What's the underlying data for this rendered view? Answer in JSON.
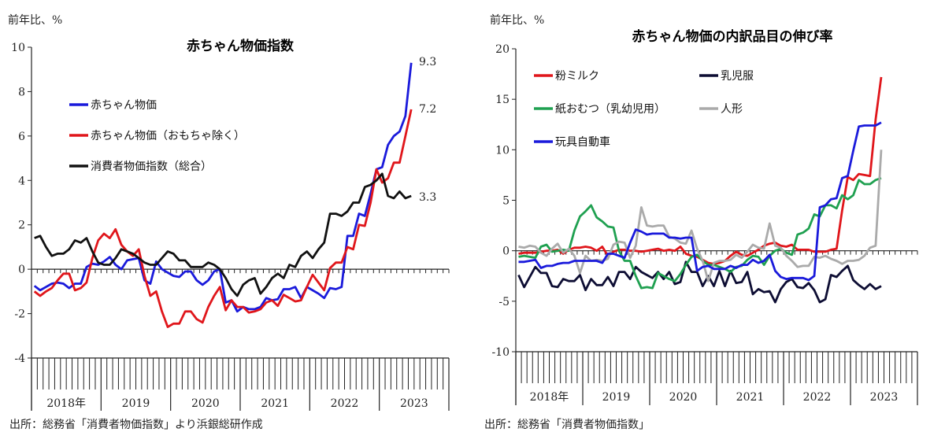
{
  "chart_data": [
    {
      "type": "line",
      "title": "赤ちゃん物価指数",
      "ylabel": "前年比、%",
      "ylim": [
        -4,
        10
      ],
      "yticks": [
        10,
        8,
        6,
        4,
        2,
        0,
        -2,
        -4
      ],
      "x_start": "2018-01",
      "frequency": "monthly",
      "year_labels": [
        "2018年",
        "2019",
        "2020",
        "2021",
        "2022",
        "2023"
      ],
      "legend": "upper-left",
      "source": "出所：総務省「消費者物価指数」より浜銀総研作成",
      "end_labels": [
        "9.3",
        "7.2",
        "3.3"
      ],
      "series": [
        {
          "name": "赤ちゃん物価",
          "color": "#1a1adb",
          "values": [
            -0.75,
            -0.95,
            -0.8,
            -0.65,
            -0.6,
            -0.65,
            -0.85,
            -0.65,
            -0.65,
            0.1,
            0.25,
            0.2,
            0.35,
            0.55,
            0.2,
            0,
            0.4,
            0.45,
            0.5,
            -0.5,
            -0.65,
            0.35,
            0,
            -0.15,
            -0.3,
            -0.35,
            -0.1,
            -0.1,
            -0.5,
            -0.7,
            -0.5,
            -0.1,
            0,
            -1.5,
            -1.4,
            -1.9,
            -1.7,
            -1.8,
            -1.8,
            -1.7,
            -1.3,
            -1.4,
            -1.35,
            -0.9,
            -0.9,
            -0.8,
            -1.3,
            -0.8,
            -0.95,
            -1.1,
            -1.3,
            -0.85,
            -0.9,
            -0.8,
            1.5,
            1.5,
            2.5,
            2.4,
            3.4,
            4.5,
            4.6,
            5.6,
            6.0,
            6.2,
            6.9,
            9.3
          ]
        },
        {
          "name": "赤ちゃん物価（おもちゃ除く）",
          "color": "#e0161b",
          "values": [
            -1.0,
            -1.2,
            -1.0,
            -0.85,
            -0.5,
            -0.2,
            -0.2,
            -0.95,
            -0.85,
            -0.6,
            0.5,
            1.3,
            1.6,
            1.4,
            1.8,
            1.1,
            0.8,
            0.6,
            0.9,
            -0.3,
            -1.2,
            -1.0,
            -1.9,
            -2.6,
            -2.45,
            -2.45,
            -1.9,
            -1.9,
            -2.25,
            -2.4,
            -1.7,
            -1.2,
            -0.8,
            -1.85,
            -1.4,
            -1.7,
            -1.7,
            -1.95,
            -1.9,
            -1.8,
            -1.5,
            -1.4,
            -1.65,
            -1.15,
            -1.3,
            -1.45,
            -1.4,
            -0.8,
            -0.25,
            -0.6,
            -0.95,
            0.05,
            0.3,
            0.3,
            1.0,
            0.9,
            2.0,
            1.95,
            3.0,
            4.5,
            3.9,
            4.1,
            4.8,
            4.8,
            6.0,
            7.2
          ]
        },
        {
          "name": "消費者物価指数（総合）",
          "color": "#111111",
          "values": [
            1.4,
            1.5,
            1.0,
            0.6,
            0.7,
            0.7,
            0.9,
            1.3,
            1.2,
            1.4,
            0.8,
            0.3,
            0.2,
            0.2,
            0.5,
            0.9,
            0.8,
            0.7,
            0.5,
            0.3,
            0.2,
            0.2,
            0.5,
            0.8,
            0.7,
            0.4,
            0.4,
            0.1,
            0.1,
            0.1,
            0.3,
            0.2,
            0,
            -0.4,
            -0.9,
            -1.2,
            -0.7,
            -0.5,
            -0.4,
            -1.1,
            -0.8,
            -0.4,
            -0.2,
            -0.4,
            0.2,
            0.1,
            0.6,
            0.8,
            0.5,
            0.9,
            1.2,
            2.5,
            2.5,
            2.4,
            2.6,
            3.0,
            3.0,
            3.7,
            3.8,
            4.0,
            4.3,
            3.3,
            3.2,
            3.5,
            3.2,
            3.3
          ]
        }
      ]
    },
    {
      "type": "line",
      "title": "赤ちゃん物価の内訳品目の伸び率",
      "ylabel": "前年比、%",
      "ylim": [
        -10,
        20
      ],
      "yticks": [
        20,
        15,
        10,
        5,
        0,
        -5,
        -10
      ],
      "x_start": "2018-01",
      "frequency": "monthly",
      "year_labels": [
        "2018年",
        "2019",
        "2020",
        "2021",
        "2022",
        "2023"
      ],
      "legend": "upper-left",
      "source": "出所：総務省「消費者物価指数」",
      "series": [
        {
          "name": "粉ミルク",
          "color": "#e0161b",
          "values": [
            -0.3,
            -0.2,
            -0.2,
            -0.2,
            -0.1,
            0,
            0,
            0.1,
            -0.3,
            0.1,
            0.3,
            0.3,
            0.4,
            0.3,
            0.0,
            0.4,
            -0.5,
            -0.1,
            0.1,
            0.1,
            0,
            0,
            -0.1,
            0,
            0.1,
            0.2,
            0,
            0.1,
            0,
            0.4,
            -0.3,
            -0.5,
            -0.6,
            -0.9,
            -1.2,
            -1.3,
            -1.2,
            -1.0,
            -0.5,
            -0.1,
            -0.4,
            -0.5,
            -0.2,
            0.1,
            0.5,
            0.7,
            0.8,
            0.5,
            0.4,
            0.6,
            0.1,
            0.1,
            0.1,
            -0.1,
            -0.1,
            -0.1,
            0.1,
            0.2,
            4.0,
            7.3,
            7.0,
            7.6,
            7.5,
            7.4,
            13.0,
            17.2
          ]
        },
        {
          "name": "乳児服",
          "color": "#0d0d33",
          "values": [
            -2.4,
            -3.6,
            -2.6,
            -1.6,
            -2.2,
            -2.2,
            -3.5,
            -3.6,
            -2.8,
            -3.0,
            -3.0,
            -2.4,
            -3.9,
            -2.8,
            -3.4,
            -3.4,
            -2.6,
            -3.5,
            -2.1,
            -2.1,
            -2.8,
            -1.6,
            -2.1,
            -2.4,
            -2.7,
            -2.1,
            -2.8,
            -2.1,
            -3.3,
            -3.1,
            -1.1,
            -2.1,
            -2.1,
            -3.5,
            -2.5,
            -3.5,
            -2.0,
            -3.5,
            -2.0,
            -3.2,
            -3.1,
            -2.1,
            -4.3,
            -3.8,
            -4.1,
            -4.0,
            -5.1,
            -3.8,
            -3.1,
            -2.8,
            -3.6,
            -3.7,
            -3.2,
            -3.9,
            -5.1,
            -4.8,
            -2.4,
            -2.6,
            -2.0,
            -1.5,
            -2.9,
            -3.4,
            -3.8,
            -3.3,
            -3.8,
            -3.5
          ]
        },
        {
          "name": "紙おむつ（乳幼児用）",
          "color": "#1fa050",
          "values": [
            -0.6,
            -0.5,
            -0.6,
            -0.7,
            0.4,
            0.6,
            -0.1,
            0,
            0.1,
            0,
            2.0,
            3.4,
            3.9,
            4.5,
            3.3,
            2.9,
            2.4,
            2.3,
            0.0,
            -1.0,
            -1.0,
            -2.5,
            -3.7,
            -3.6,
            -3.7,
            -2.2,
            -2.5,
            -2.8,
            -3.0,
            -2.3,
            -1.4,
            -0.6,
            -0.4,
            -1.0,
            -1.4,
            -1.4,
            -1.6,
            -1.8,
            -2.1,
            -1.6,
            -1.5,
            -0.9,
            -0.5,
            -0.6,
            -1.4,
            -0.5,
            0.0,
            0.2,
            -0.2,
            -0.4,
            1.6,
            1.8,
            2.2,
            3.6,
            3.4,
            4.5,
            4.5,
            4.2,
            5.5,
            5.1,
            5.5,
            7.0,
            6.6,
            6.6,
            7.0,
            7.2
          ]
        },
        {
          "name": "人形",
          "color": "#aaaaaa",
          "values": [
            0.4,
            0.3,
            0.5,
            0.4,
            -0.2,
            -0.5,
            0.2,
            0.7,
            -0.2,
            0.2,
            -0.5,
            -2.2,
            -0.5,
            -1.0,
            -0.9,
            -1.0,
            -0.8,
            0.6,
            0.9,
            0.8,
            -0.7,
            0.5,
            4.3,
            2.5,
            2.4,
            2.5,
            2.5,
            1.4,
            1.2,
            0.8,
            0.7,
            2.0,
            0.2,
            -1.0,
            -3.0,
            -1.2,
            -1.0,
            -1.0,
            -0.9,
            -0.4,
            -0.7,
            -0.1,
            0.6,
            0.3,
            0.2,
            2.7,
            0.5,
            0.3,
            -0.5,
            -1.0,
            -1.6,
            -1.5,
            -1.5,
            -0.6,
            -0.7,
            -0.5,
            -0.8,
            -1.0,
            -1.3,
            -1.0,
            -1.0,
            -0.9,
            -0.5,
            0.3,
            0.5,
            10.0
          ]
        },
        {
          "name": "玩具自動車",
          "color": "#1a1adb",
          "values": [
            -1.1,
            -1.1,
            -1.0,
            -0.9,
            -1.7,
            -1.5,
            -1.5,
            -1.3,
            -1.2,
            -1.2,
            -1.0,
            -1.0,
            -1.0,
            -1.0,
            -1.0,
            -1.2,
            -0.3,
            -0.3,
            -0.5,
            -0.7,
            0.8,
            2.1,
            1.9,
            1.6,
            1.7,
            1.7,
            1.7,
            1.3,
            1.3,
            1.2,
            1.3,
            1.3,
            -2.0,
            -1.6,
            -1.5,
            -1.8,
            -1.8,
            -1.8,
            -1.5,
            -1.7,
            -1.4,
            -1.4,
            -0.9,
            -1.2,
            -1.0,
            -0.4,
            -2.0,
            -2.6,
            -2.8,
            -2.7,
            -2.7,
            -2.7,
            -2.9,
            -2.5,
            4.3,
            4.5,
            5.1,
            5.2,
            7.2,
            7.4,
            9.9,
            12.3,
            12.4,
            12.4,
            12.4,
            12.7
          ]
        }
      ]
    }
  ]
}
